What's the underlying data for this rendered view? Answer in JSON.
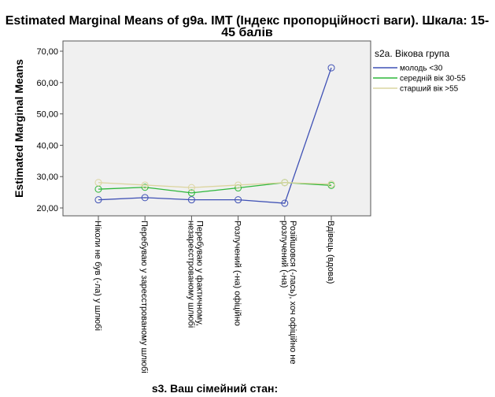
{
  "chart_data": {
    "type": "line",
    "title_lines": [
      "Estimated Marginal Means of g9a. ІМТ (Індекс пропорційності ваги). Шкала: 15-",
      "45 балів"
    ],
    "xlabel": "s3. Ваш сімейний стан:",
    "ylabel": "Estimated Marginal Means",
    "ylim": [
      17.5,
      72.5
    ],
    "yticks": [
      "20,00",
      "30,00",
      "40,00",
      "50,00",
      "60,00",
      "70,00"
    ],
    "ytick_values": [
      20,
      30,
      40,
      50,
      60,
      70
    ],
    "categories": [
      [
        "Ніколи не був (-ла) у шлюбі"
      ],
      [
        "Перебуваю у зареєстрованому шлюбі"
      ],
      [
        "Перебуваю у фактичному,",
        "незареєстрованому шлюбі"
      ],
      [
        "Розлучений (-на) офіційно"
      ],
      [
        "Розійшовся (-лась), хоч офіційно не",
        "розлучений (-на)"
      ],
      [
        "Вдівець (вдова)"
      ]
    ],
    "legend_title": "s2a. Вікова група",
    "legend_placement": "right",
    "series": [
      {
        "name": "молодь <30",
        "color": "#3f51b5",
        "values": [
          22.6,
          23.3,
          22.6,
          22.6,
          21.5,
          64.7
        ]
      },
      {
        "name": "середній вік 30-55",
        "color": "#2db73a",
        "values": [
          26.0,
          26.6,
          24.8,
          26.4,
          28.1,
          27.2
        ]
      },
      {
        "name": "старший вік >55",
        "color": "#dcd5a0",
        "values": [
          28.1,
          27.3,
          26.5,
          27.3,
          28.1,
          27.6
        ]
      }
    ]
  }
}
